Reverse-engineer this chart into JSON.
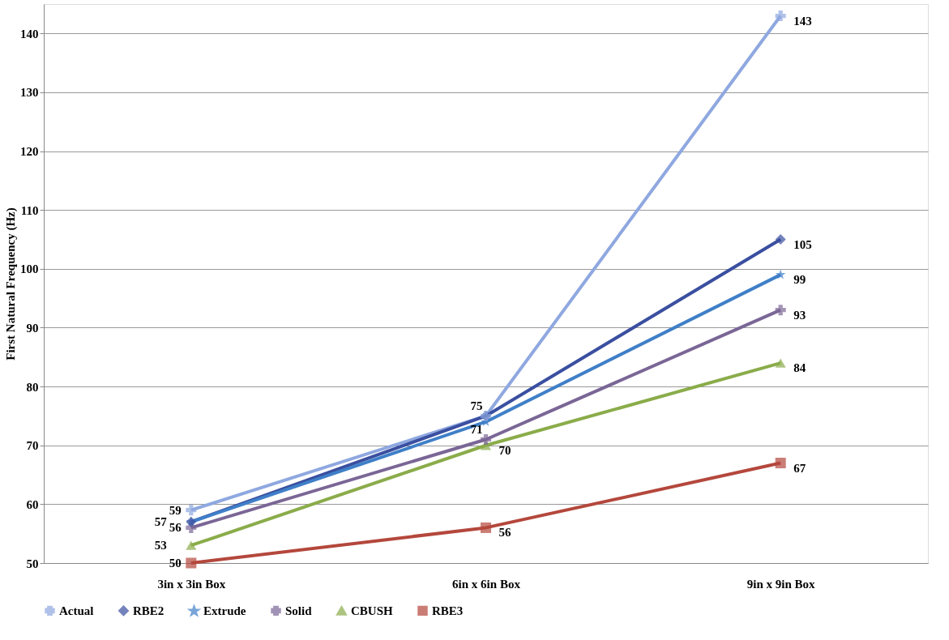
{
  "chart_data": {
    "type": "line",
    "ylabel": "First Natural Frequency  (Hz)",
    "categories": [
      "3in x 3in Box",
      "6in x 6in Box",
      "9in x 9in  Box"
    ],
    "series": [
      {
        "name": "Actual",
        "color": "#8fa8e0",
        "marker": "cross",
        "values": [
          59,
          75,
          143
        ],
        "value_labels": [
          "59",
          null,
          "143"
        ]
      },
      {
        "name": "RBE2",
        "color": "#3a4fa0",
        "marker": "diamond",
        "values": [
          57,
          75,
          105
        ],
        "value_labels": [
          "57",
          "75",
          "105"
        ]
      },
      {
        "name": "Extrude",
        "color": "#3f7fc8",
        "marker": "star",
        "values": [
          57,
          74,
          99
        ],
        "value_labels": [
          null,
          null,
          "99"
        ]
      },
      {
        "name": "Solid",
        "color": "#7a6696",
        "marker": "cross",
        "values": [
          56,
          71,
          93
        ],
        "value_labels": [
          "56",
          "71",
          "93"
        ]
      },
      {
        "name": "CBUSH",
        "color": "#8aac4a",
        "marker": "triangle",
        "values": [
          53,
          70,
          84
        ],
        "value_labels": [
          "53",
          "70",
          "84"
        ]
      },
      {
        "name": "RBE3",
        "color": "#b4473c",
        "marker": "square",
        "values": [
          50,
          56,
          67
        ],
        "value_labels": [
          "50",
          "56",
          "67"
        ]
      }
    ],
    "ylim": [
      50,
      145
    ],
    "yticks": [
      50,
      60,
      70,
      80,
      90,
      100,
      110,
      120,
      130,
      140
    ],
    "grid": "y",
    "legend": "bottom",
    "line_style": "solid"
  }
}
